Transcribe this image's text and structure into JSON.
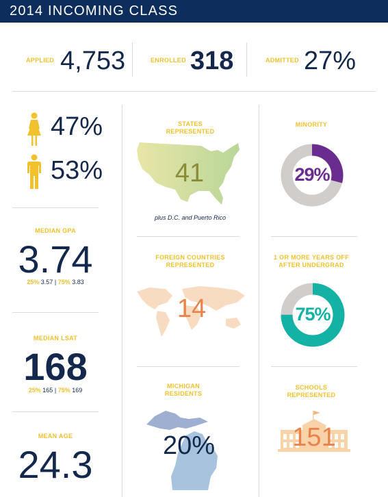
{
  "header": {
    "title": "2014 INCOMING CLASS"
  },
  "top_stats": {
    "applied_label": "APPLIED",
    "applied_value": "4,753",
    "enrolled_label": "ENROLLED",
    "enrolled_value": "318",
    "admitted_label": "ADMITTED",
    "admitted_value": "27%"
  },
  "gender": {
    "female_pct": "47%",
    "male_pct": "53%"
  },
  "gpa": {
    "label": "MEDIAN GPA",
    "value": "3.74",
    "p25_label": "25%",
    "p25_value": "3.57",
    "sep": "|",
    "p75_label": "75%",
    "p75_value": "3.83"
  },
  "lsat": {
    "label": "MEDIAN LSAT",
    "value": "168",
    "p25_label": "25%",
    "p25_value": "165",
    "sep": "|",
    "p75_label": "75%",
    "p75_value": "169"
  },
  "age": {
    "label": "MEAN AGE",
    "value": "24.3"
  },
  "states": {
    "label_line1": "STATES",
    "label_line2": "REPRESENTED",
    "value": "41",
    "note": "plus D.C. and Puerto Rico"
  },
  "foreign": {
    "label_line1": "FOREIGN COUNTRIES",
    "label_line2": "REPRESENTED",
    "value": "14"
  },
  "michigan": {
    "label_line1": "MICHIGAN",
    "label_line2": "RESIDENTS",
    "value": "20%"
  },
  "minority": {
    "label": "MINORITY",
    "value": "29%",
    "fraction": 0.29,
    "color": "#6b2c8f"
  },
  "years_off": {
    "label_line1": "1 OR MORE YEARS OFF",
    "label_line2": "AFTER UNDERGRAD",
    "value": "75%",
    "fraction": 0.75,
    "color": "#14b1a5"
  },
  "schools": {
    "label_line1": "SCHOOLS",
    "label_line2": "REPRESENTED",
    "value": "151"
  },
  "colors": {
    "navy": "#0d2d5c",
    "gold": "#f2c12e",
    "ring_bg": "#d0cdcb",
    "orange": "#e8844a"
  }
}
